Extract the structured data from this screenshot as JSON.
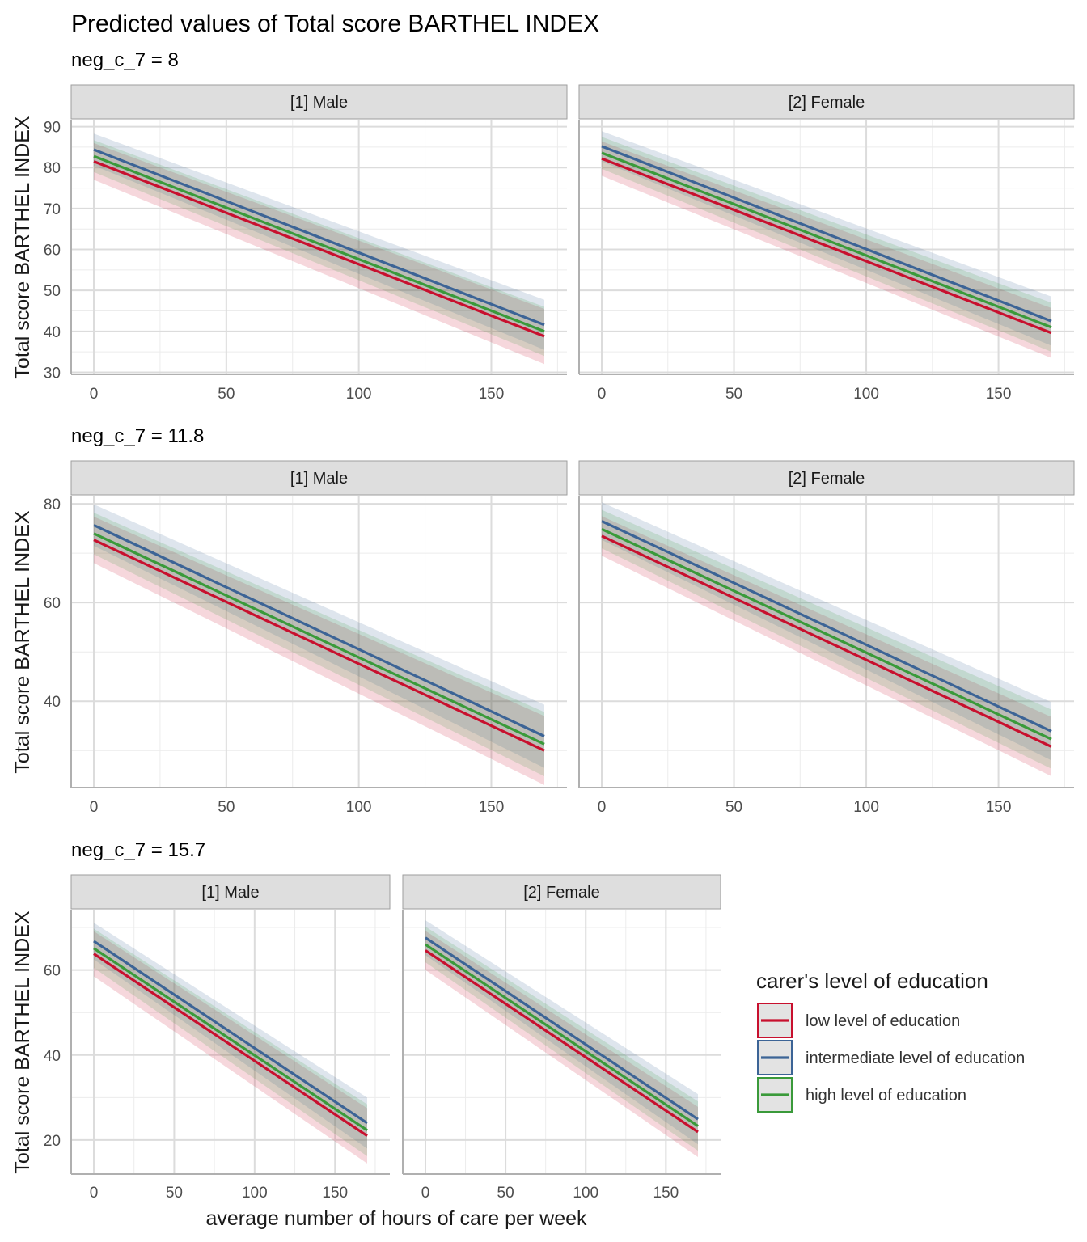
{
  "chart_data": {
    "type": "line",
    "title": "Predicted values of Total score BARTHEL INDEX",
    "xlabel": "average number of hours of care per week",
    "ylabel": "Total score BARTHEL INDEX",
    "x_ticks": [
      0,
      50,
      100,
      150
    ],
    "x_range": [
      0,
      170
    ],
    "facets": [
      "[1] Male",
      "[2] Female"
    ],
    "legend": {
      "title": "carer's level of education",
      "position": "right",
      "entries": [
        {
          "key": "low",
          "label": "low level of education",
          "color": "#c8102e"
        },
        {
          "key": "intermediate",
          "label": "intermediate level of education",
          "color": "#3c6496"
        },
        {
          "key": "high",
          "label": "high level of education",
          "color": "#3a9a3a"
        }
      ]
    },
    "panels": [
      {
        "subtitle": "neg_c_7 = 8",
        "y_ticks": [
          30,
          40,
          50,
          60,
          70,
          80,
          90
        ],
        "y_range": [
          29.5,
          91.5
        ],
        "facets": [
          {
            "strip": "[1] Male",
            "series": [
              {
                "key": "low",
                "x": [
                  0,
                  170
                ],
                "y": [
                  81.5,
                  38.8
                ],
                "lower": [
                  77.0,
                  32.0
                ],
                "upper": [
                  86.0,
                  45.5
                ]
              },
              {
                "key": "intermediate",
                "x": [
                  0,
                  170
                ],
                "y": [
                  84.4,
                  41.6
                ],
                "lower": [
                  80.5,
                  35.5
                ],
                "upper": [
                  88.3,
                  47.7
                ]
              },
              {
                "key": "high",
                "x": [
                  0,
                  170
                ],
                "y": [
                  82.8,
                  40.0
                ],
                "lower": [
                  78.9,
                  34.0
                ],
                "upper": [
                  86.7,
                  46.0
                ]
              }
            ]
          },
          {
            "strip": "[2] Female",
            "series": [
              {
                "key": "low",
                "x": [
                  0,
                  170
                ],
                "y": [
                  82.2,
                  39.6
                ],
                "lower": [
                  78.0,
                  33.5
                ],
                "upper": [
                  86.4,
                  45.7
                ]
              },
              {
                "key": "intermediate",
                "x": [
                  0,
                  170
                ],
                "y": [
                  85.2,
                  42.5
                ],
                "lower": [
                  81.5,
                  36.5
                ],
                "upper": [
                  88.9,
                  48.5
                ]
              },
              {
                "key": "high",
                "x": [
                  0,
                  170
                ],
                "y": [
                  83.6,
                  41.0
                ],
                "lower": [
                  79.7,
                  35.0
                ],
                "upper": [
                  87.5,
                  47.0
                ]
              }
            ]
          }
        ]
      },
      {
        "subtitle": "neg_c_7 = 11.8",
        "y_ticks": [
          40,
          60,
          80
        ],
        "y_range": [
          22.5,
          81.5
        ],
        "facets": [
          {
            "strip": "[1] Male",
            "series": [
              {
                "key": "low",
                "x": [
                  0,
                  170
                ],
                "y": [
                  72.7,
                  30.0
                ],
                "lower": [
                  68.0,
                  23.0
                ],
                "upper": [
                  77.4,
                  37.0
                ]
              },
              {
                "key": "intermediate",
                "x": [
                  0,
                  170
                ],
                "y": [
                  75.7,
                  32.9
                ],
                "lower": [
                  71.5,
                  26.5
                ],
                "upper": [
                  79.9,
                  39.3
                ]
              },
              {
                "key": "high",
                "x": [
                  0,
                  170
                ],
                "y": [
                  74.0,
                  31.3
                ],
                "lower": [
                  69.8,
                  24.8
                ],
                "upper": [
                  78.2,
                  37.8
                ]
              }
            ]
          },
          {
            "strip": "[2] Female",
            "series": [
              {
                "key": "low",
                "x": [
                  0,
                  170
                ],
                "y": [
                  73.5,
                  30.8
                ],
                "lower": [
                  69.5,
                  24.8
                ],
                "upper": [
                  77.5,
                  36.8
                ]
              },
              {
                "key": "intermediate",
                "x": [
                  0,
                  170
                ],
                "y": [
                  76.5,
                  33.9
                ],
                "lower": [
                  72.7,
                  28.0
                ],
                "upper": [
                  80.3,
                  39.8
                ]
              },
              {
                "key": "high",
                "x": [
                  0,
                  170
                ],
                "y": [
                  74.9,
                  32.3
                ],
                "lower": [
                  71.0,
                  26.3
                ],
                "upper": [
                  78.8,
                  38.3
                ]
              }
            ]
          }
        ]
      },
      {
        "subtitle": "neg_c_7 = 15.7",
        "y_ticks": [
          20,
          40,
          60
        ],
        "y_range": [
          12.0,
          74.0
        ],
        "facets": [
          {
            "strip": "[1] Male",
            "series": [
              {
                "key": "low",
                "x": [
                  0,
                  170
                ],
                "y": [
                  63.8,
                  21.0
                ],
                "lower": [
                  58.5,
                  14.5
                ],
                "upper": [
                  69.1,
                  27.5
                ]
              },
              {
                "key": "intermediate",
                "x": [
                  0,
                  170
                ],
                "y": [
                  66.8,
                  24.0
                ],
                "lower": [
                  62.5,
                  18.0
                ],
                "upper": [
                  71.1,
                  30.0
                ]
              },
              {
                "key": "high",
                "x": [
                  0,
                  170
                ],
                "y": [
                  65.1,
                  22.3
                ],
                "lower": [
                  60.5,
                  16.2
                ],
                "upper": [
                  69.7,
                  28.4
                ]
              }
            ]
          },
          {
            "strip": "[2] Female",
            "series": [
              {
                "key": "low",
                "x": [
                  0,
                  170
                ],
                "y": [
                  64.6,
                  21.9
                ],
                "lower": [
                  60.0,
                  16.0
                ],
                "upper": [
                  69.2,
                  27.8
                ]
              },
              {
                "key": "intermediate",
                "x": [
                  0,
                  170
                ],
                "y": [
                  67.6,
                  24.9
                ],
                "lower": [
                  63.5,
                  19.0
                ],
                "upper": [
                  71.7,
                  30.8
                ]
              },
              {
                "key": "high",
                "x": [
                  0,
                  170
                ],
                "y": [
                  66.0,
                  23.3
                ],
                "lower": [
                  61.8,
                  17.5
                ],
                "upper": [
                  70.2,
                  29.1
                ]
              }
            ]
          }
        ]
      }
    ]
  }
}
